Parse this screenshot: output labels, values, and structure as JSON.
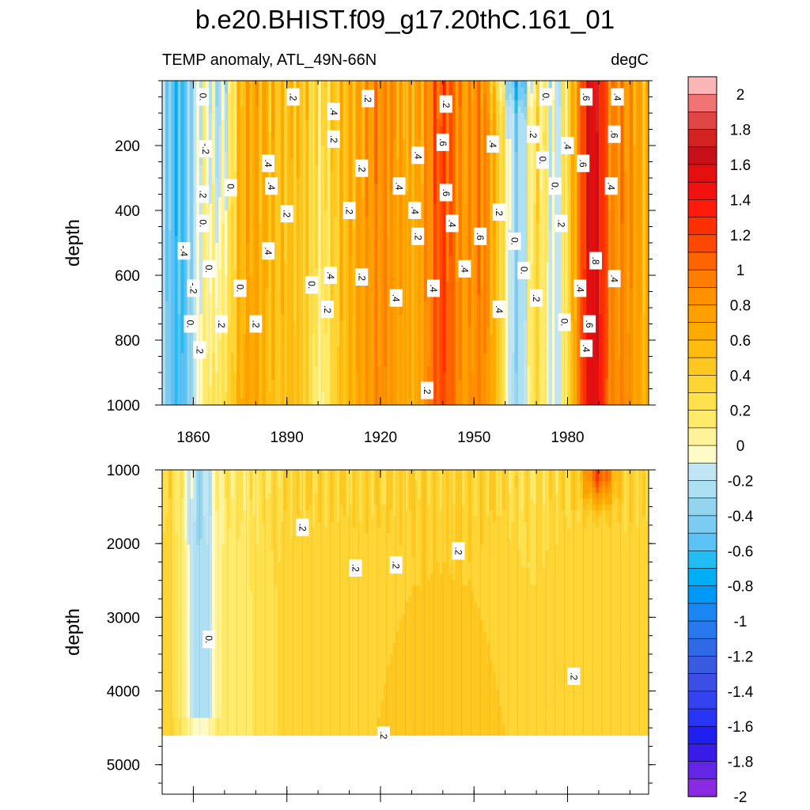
{
  "chart_data": [
    {
      "type": "heatmap",
      "title": "b.e20.BHIST.f09_g17.20thC.161_01",
      "subtitle_left": "TEMP anomaly, ATL_49N-66N",
      "subtitle_right": "degC",
      "panel": "upper",
      "xlabel": "",
      "ylabel": "depth",
      "x_range": [
        1850,
        2006
      ],
      "y_range": [
        0,
        1000
      ],
      "y_reversed": true,
      "x_ticks": [
        1860,
        1890,
        1920,
        1950,
        1980
      ],
      "y_ticks": [
        200,
        400,
        600,
        800,
        1000
      ],
      "x_tick_labels": [
        "1860",
        "1890",
        "1920",
        "1950",
        "1980"
      ],
      "y_tick_labels": [
        "200",
        "400",
        "600",
        "800",
        "1000"
      ],
      "contour_labels": [
        {
          "t": "0.",
          "x": 1863,
          "y": 50
        },
        {
          "t": ".2",
          "x": 1892,
          "y": 50
        },
        {
          "t": ".4",
          "x": 1905,
          "y": 95
        },
        {
          "t": ".2",
          "x": 1916,
          "y": 55
        },
        {
          "t": ".2",
          "x": 1941,
          "y": 72
        },
        {
          "t": "0.",
          "x": 1973,
          "y": 50
        },
        {
          "t": ".6",
          "x": 1986,
          "y": 50
        },
        {
          "t": ".4",
          "x": 1996,
          "y": 50
        },
        {
          "t": "-.2",
          "x": 1864,
          "y": 210
        },
        {
          "t": ".2",
          "x": 1905,
          "y": 180
        },
        {
          "t": ".4",
          "x": 1932,
          "y": 230
        },
        {
          "t": ".6",
          "x": 1940,
          "y": 190
        },
        {
          "t": ".4",
          "x": 1956,
          "y": 195
        },
        {
          "t": ".2",
          "x": 1969,
          "y": 165
        },
        {
          "t": ".4",
          "x": 1980,
          "y": 200
        },
        {
          "t": ".6",
          "x": 1995,
          "y": 165
        },
        {
          "t": ".4",
          "x": 1884,
          "y": 255
        },
        {
          "t": ".2",
          "x": 1914,
          "y": 270
        },
        {
          "t": "0.",
          "x": 1972,
          "y": 245
        },
        {
          "t": ".6",
          "x": 1985,
          "y": 255
        },
        {
          "t": ".2",
          "x": 1863,
          "y": 350
        },
        {
          "t": "0.",
          "x": 1872,
          "y": 330
        },
        {
          "t": ".4",
          "x": 1885,
          "y": 325
        },
        {
          "t": ".4",
          "x": 1926,
          "y": 325
        },
        {
          "t": ".6",
          "x": 1941,
          "y": 345
        },
        {
          "t": "0.",
          "x": 1976,
          "y": 325
        },
        {
          "t": ".4",
          "x": 1994,
          "y": 325
        },
        {
          "t": ".2",
          "x": 1890,
          "y": 410
        },
        {
          "t": ".2",
          "x": 1910,
          "y": 400
        },
        {
          "t": ".4",
          "x": 1931,
          "y": 400
        },
        {
          "t": ".2",
          "x": 1958,
          "y": 405
        },
        {
          "t": "0.",
          "x": 1863,
          "y": 440
        },
        {
          "t": ".4",
          "x": 1943,
          "y": 440
        },
        {
          "t": ".2",
          "x": 1978,
          "y": 440
        },
        {
          "t": "-.4",
          "x": 1857,
          "y": 525
        },
        {
          "t": ".2",
          "x": 1932,
          "y": 480
        },
        {
          "t": ".6",
          "x": 1952,
          "y": 480
        },
        {
          "t": "0.",
          "x": 1963,
          "y": 495
        },
        {
          "t": "0.",
          "x": 1865,
          "y": 580
        },
        {
          "t": ".4",
          "x": 1884,
          "y": 525
        },
        {
          "t": ".8",
          "x": 1989,
          "y": 555
        },
        {
          "t": "0.",
          "x": 1966,
          "y": 585
        },
        {
          "t": ".4",
          "x": 1947,
          "y": 580
        },
        {
          "t": ".4",
          "x": 1904,
          "y": 600
        },
        {
          "t": ".2",
          "x": 1914,
          "y": 605
        },
        {
          "t": ".4",
          "x": 1995,
          "y": 610
        },
        {
          "t": "-.2",
          "x": 1860,
          "y": 640
        },
        {
          "t": "0.",
          "x": 1875,
          "y": 640
        },
        {
          "t": "0.",
          "x": 1898,
          "y": 630
        },
        {
          "t": ".4",
          "x": 1937,
          "y": 640
        },
        {
          "t": ".4",
          "x": 1984,
          "y": 640
        },
        {
          "t": ".4",
          "x": 1925,
          "y": 670
        },
        {
          "t": ".2",
          "x": 1970,
          "y": 670
        },
        {
          "t": ".2",
          "x": 1903,
          "y": 705
        },
        {
          "t": ".4",
          "x": 1958,
          "y": 705
        },
        {
          "t": "0.",
          "x": 1859,
          "y": 750
        },
        {
          "t": ".2",
          "x": 1869,
          "y": 750
        },
        {
          "t": ".2",
          "x": 1880,
          "y": 750
        },
        {
          "t": "0.",
          "x": 1979,
          "y": 745
        },
        {
          "t": ".6",
          "x": 1987,
          "y": 750
        },
        {
          "t": ".2",
          "x": 1862,
          "y": 830
        },
        {
          "t": ".4",
          "x": 1986,
          "y": 825
        },
        {
          "t": ".2",
          "x": 1935,
          "y": 955
        }
      ]
    },
    {
      "type": "heatmap",
      "panel": "lower",
      "xlabel": "",
      "ylabel": "depth",
      "x_range": [
        1850,
        2006
      ],
      "y_range": [
        1000,
        5400
      ],
      "y_reversed": true,
      "data_bottom_depth": 4600,
      "y_ticks": [
        1000,
        2000,
        3000,
        4000,
        5000
      ],
      "y_tick_labels": [
        "1000",
        "2000",
        "3000",
        "4000",
        "5000"
      ],
      "contour_labels": [
        {
          "t": ".2",
          "x": 1895,
          "y": 1780
        },
        {
          "t": ".2",
          "x": 1945,
          "y": 2100
        },
        {
          "t": ".2",
          "x": 1912,
          "y": 2330
        },
        {
          "t": ".2",
          "x": 1925,
          "y": 2290
        },
        {
          "t": "0.",
          "x": 1865,
          "y": 3300
        },
        {
          "t": ".2",
          "x": 1982,
          "y": 3800
        },
        {
          "t": ".2",
          "x": 1921,
          "y": 4600
        }
      ]
    }
  ],
  "colorbar": {
    "labels": [
      "2",
      "1.8",
      "1.6",
      "1.4",
      "1.2",
      "1",
      "0.8",
      "0.6",
      "0.4",
      "0.2",
      "0",
      "-0.2",
      "-0.4",
      "-0.6",
      "-0.8",
      "-1",
      "-1.2",
      "-1.4",
      "-1.6",
      "-1.8",
      "-2"
    ],
    "colors": [
      "#fbb6b6",
      "#f07474",
      "#e04646",
      "#d32222",
      "#c8101a",
      "#e41010",
      "#f21010",
      "#ff1a0a",
      "#ff3000",
      "#ff4800",
      "#ff6400",
      "#ff7d00",
      "#ff9000",
      "#ffa000",
      "#ffaa00",
      "#ffbb10",
      "#ffc820",
      "#ffd535",
      "#ffe04d",
      "#ffea6a",
      "#fff39a",
      "#fffbc8",
      "#c2e5f3",
      "#ade0f2",
      "#94d5ee",
      "#7bcbf2",
      "#5cc2f6",
      "#23bdf4",
      "#00aef5",
      "#0098f6",
      "#1b86f2",
      "#2878ee",
      "#3069e6",
      "#3a5be0",
      "#3c4ee4",
      "#3542f0",
      "#2a34f4",
      "#1f20f0",
      "#3a1ce8",
      "#6426e6",
      "#8a2be2"
    ]
  }
}
